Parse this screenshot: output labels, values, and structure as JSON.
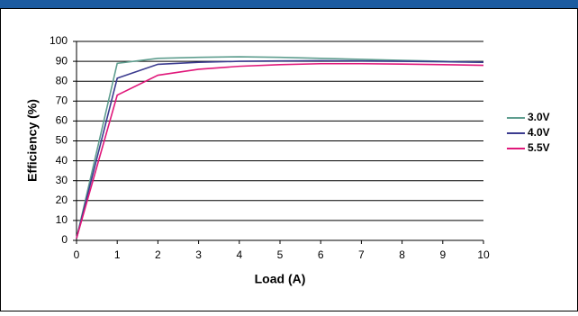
{
  "chart_data": {
    "type": "line",
    "x_label": "Load (A)",
    "y_label": "Efficiency (%)",
    "x": [
      0,
      1,
      2,
      3,
      4,
      5,
      6,
      7,
      8,
      9,
      10
    ],
    "series": [
      {
        "name": "3.0V",
        "color": "#5f9e8f",
        "values": [
          1,
          89,
          91.5,
          92,
          92.3,
          92,
          91.5,
          91,
          90.5,
          90,
          89.5
        ]
      },
      {
        "name": "4.0V",
        "color": "#3b3b8f",
        "values": [
          1,
          81.5,
          88.5,
          89.5,
          90,
          90.2,
          90.3,
          90.2,
          90,
          89.8,
          89.5
        ]
      },
      {
        "name": "5.5V",
        "color": "#e0177a",
        "values": [
          1,
          73,
          83,
          86,
          87.5,
          88.3,
          88.8,
          88.8,
          88.6,
          88.3,
          88
        ]
      }
    ],
    "xlim": [
      0,
      10
    ],
    "xticks": [
      0,
      1,
      2,
      3,
      4,
      5,
      6,
      7,
      8,
      9,
      10
    ],
    "ylim": [
      0,
      100
    ],
    "yticks": [
      0,
      10,
      20,
      30,
      40,
      50,
      60,
      70,
      80,
      90,
      100
    ],
    "grid": true
  }
}
